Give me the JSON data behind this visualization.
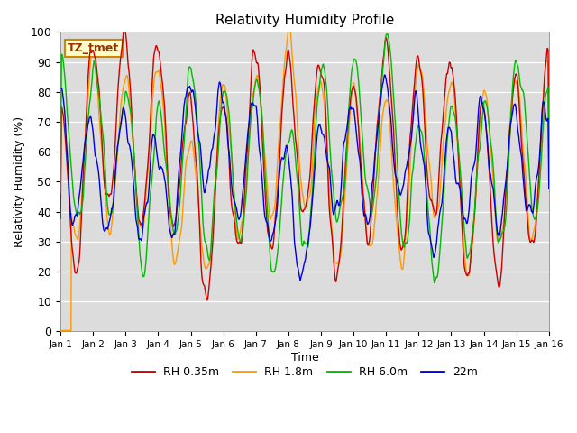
{
  "title": "Relativity Humidity Profile",
  "xlabel": "Time",
  "ylabel": "Relativity Humidity (%)",
  "ylim": [
    0,
    100
  ],
  "annotation": "TZ_tmet",
  "background_color": "#dcdcdc",
  "figure_color": "#ffffff",
  "legend_labels": [
    "RH 0.35m",
    "RH 1.8m",
    "RH 6.0m",
    "22m"
  ],
  "line_colors": [
    "#cc0000",
    "#ff9900",
    "#00bb00",
    "#0000dd"
  ],
  "xtick_labels": [
    "Jan 1",
    "Jan 2",
    "Jan 3",
    "Jan 4",
    "Jan 5",
    "Jan 6",
    "Jan 7",
    "Jan 8",
    "Jan 9",
    "Jan 10",
    "Jan 11",
    "Jan 12",
    "Jan 13",
    "Jan 14",
    "Jan 15",
    "Jan 16"
  ],
  "n_days": 15,
  "dt_hours": 0.25
}
